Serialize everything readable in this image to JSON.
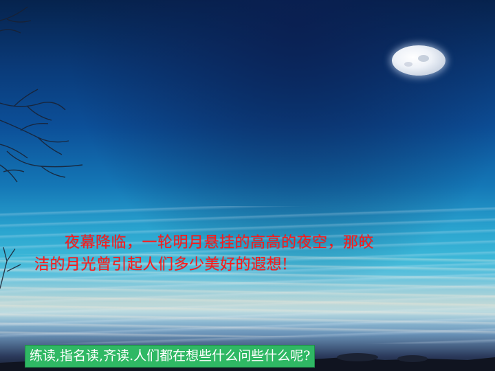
{
  "slide": {
    "poem": {
      "line1": "夜幕降临，一轮明月悬挂的高高的夜空，那皎",
      "line2": "洁的月光曾引起人们多少美好的遐想!"
    },
    "instruction": "练读,指名读,齐读.人们都在想些什么问些什么呢?"
  },
  "colors": {
    "poem_text": "#ff1a1a",
    "instruction_bg": "#2fb864",
    "instruction_text": "#ffffff"
  },
  "icons": [
    "moon-icon",
    "tree-branches",
    "fence-silhouette"
  ]
}
